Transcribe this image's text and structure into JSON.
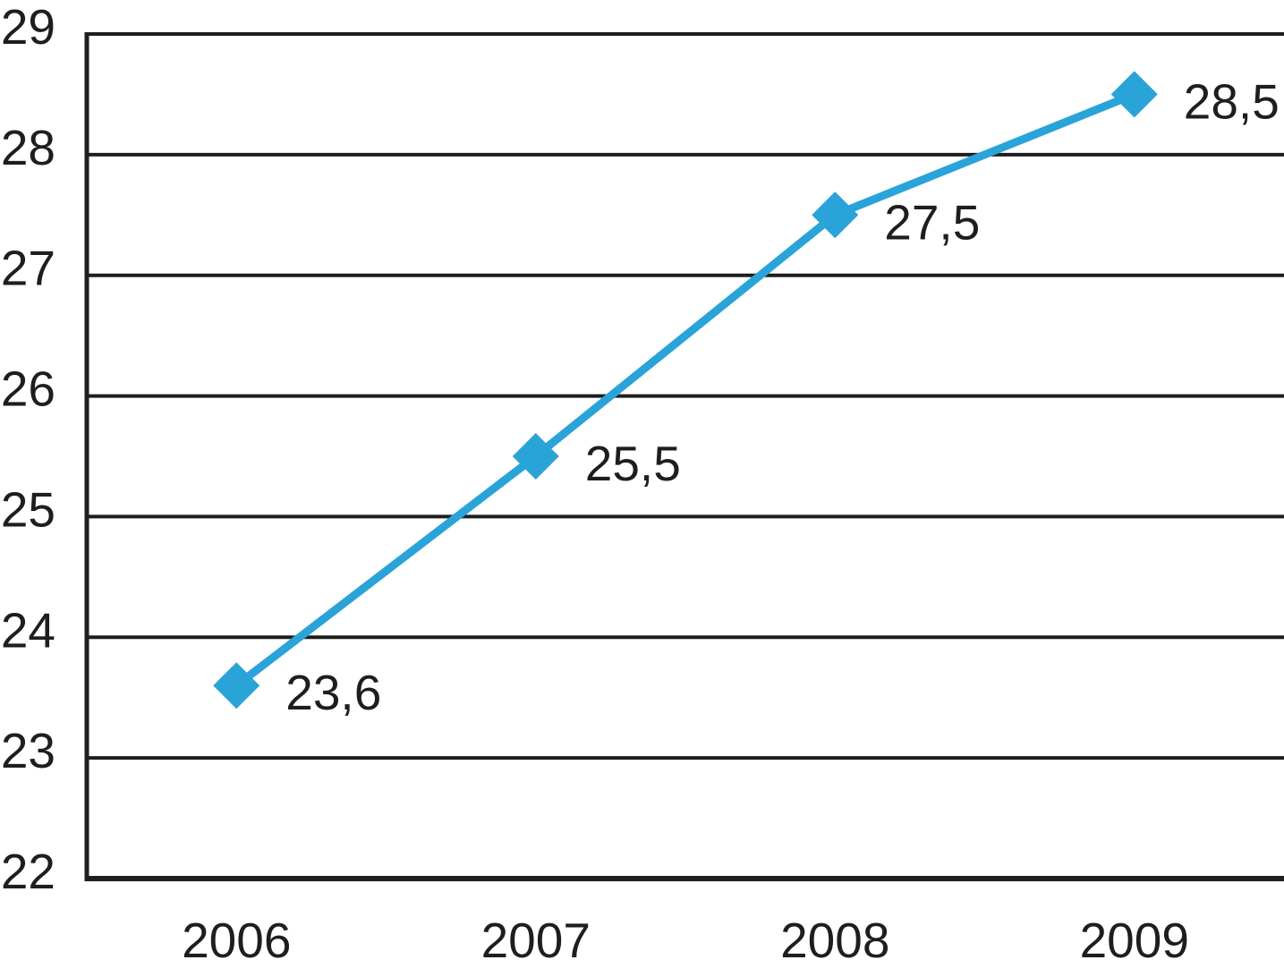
{
  "chart_data": {
    "type": "line",
    "title": "",
    "xlabel": "",
    "ylabel": "",
    "categories": [
      "2006",
      "2007",
      "2008",
      "2009"
    ],
    "series": [
      {
        "name": "series-1",
        "values": [
          23.6,
          25.5,
          27.5,
          28.5
        ]
      }
    ],
    "data_labels": [
      "23,6",
      "25,5",
      "27,5",
      "28,5"
    ],
    "y_ticks": [
      "22",
      "23",
      "24",
      "25",
      "26",
      "27",
      "28",
      "29"
    ],
    "y_tick_values": [
      22,
      23,
      24,
      25,
      26,
      27,
      28,
      29
    ],
    "ylim": [
      22,
      29
    ],
    "grid": "horizontal-only",
    "legend_position": "none",
    "marker_shape": "diamond",
    "decimal_separator": ",",
    "colors": {
      "series": "#2AA3D9",
      "axis": "#1E1E1E",
      "gridline": "#1E1E1E",
      "text": "#1E1E1E",
      "background": "#FFFFFF"
    }
  }
}
